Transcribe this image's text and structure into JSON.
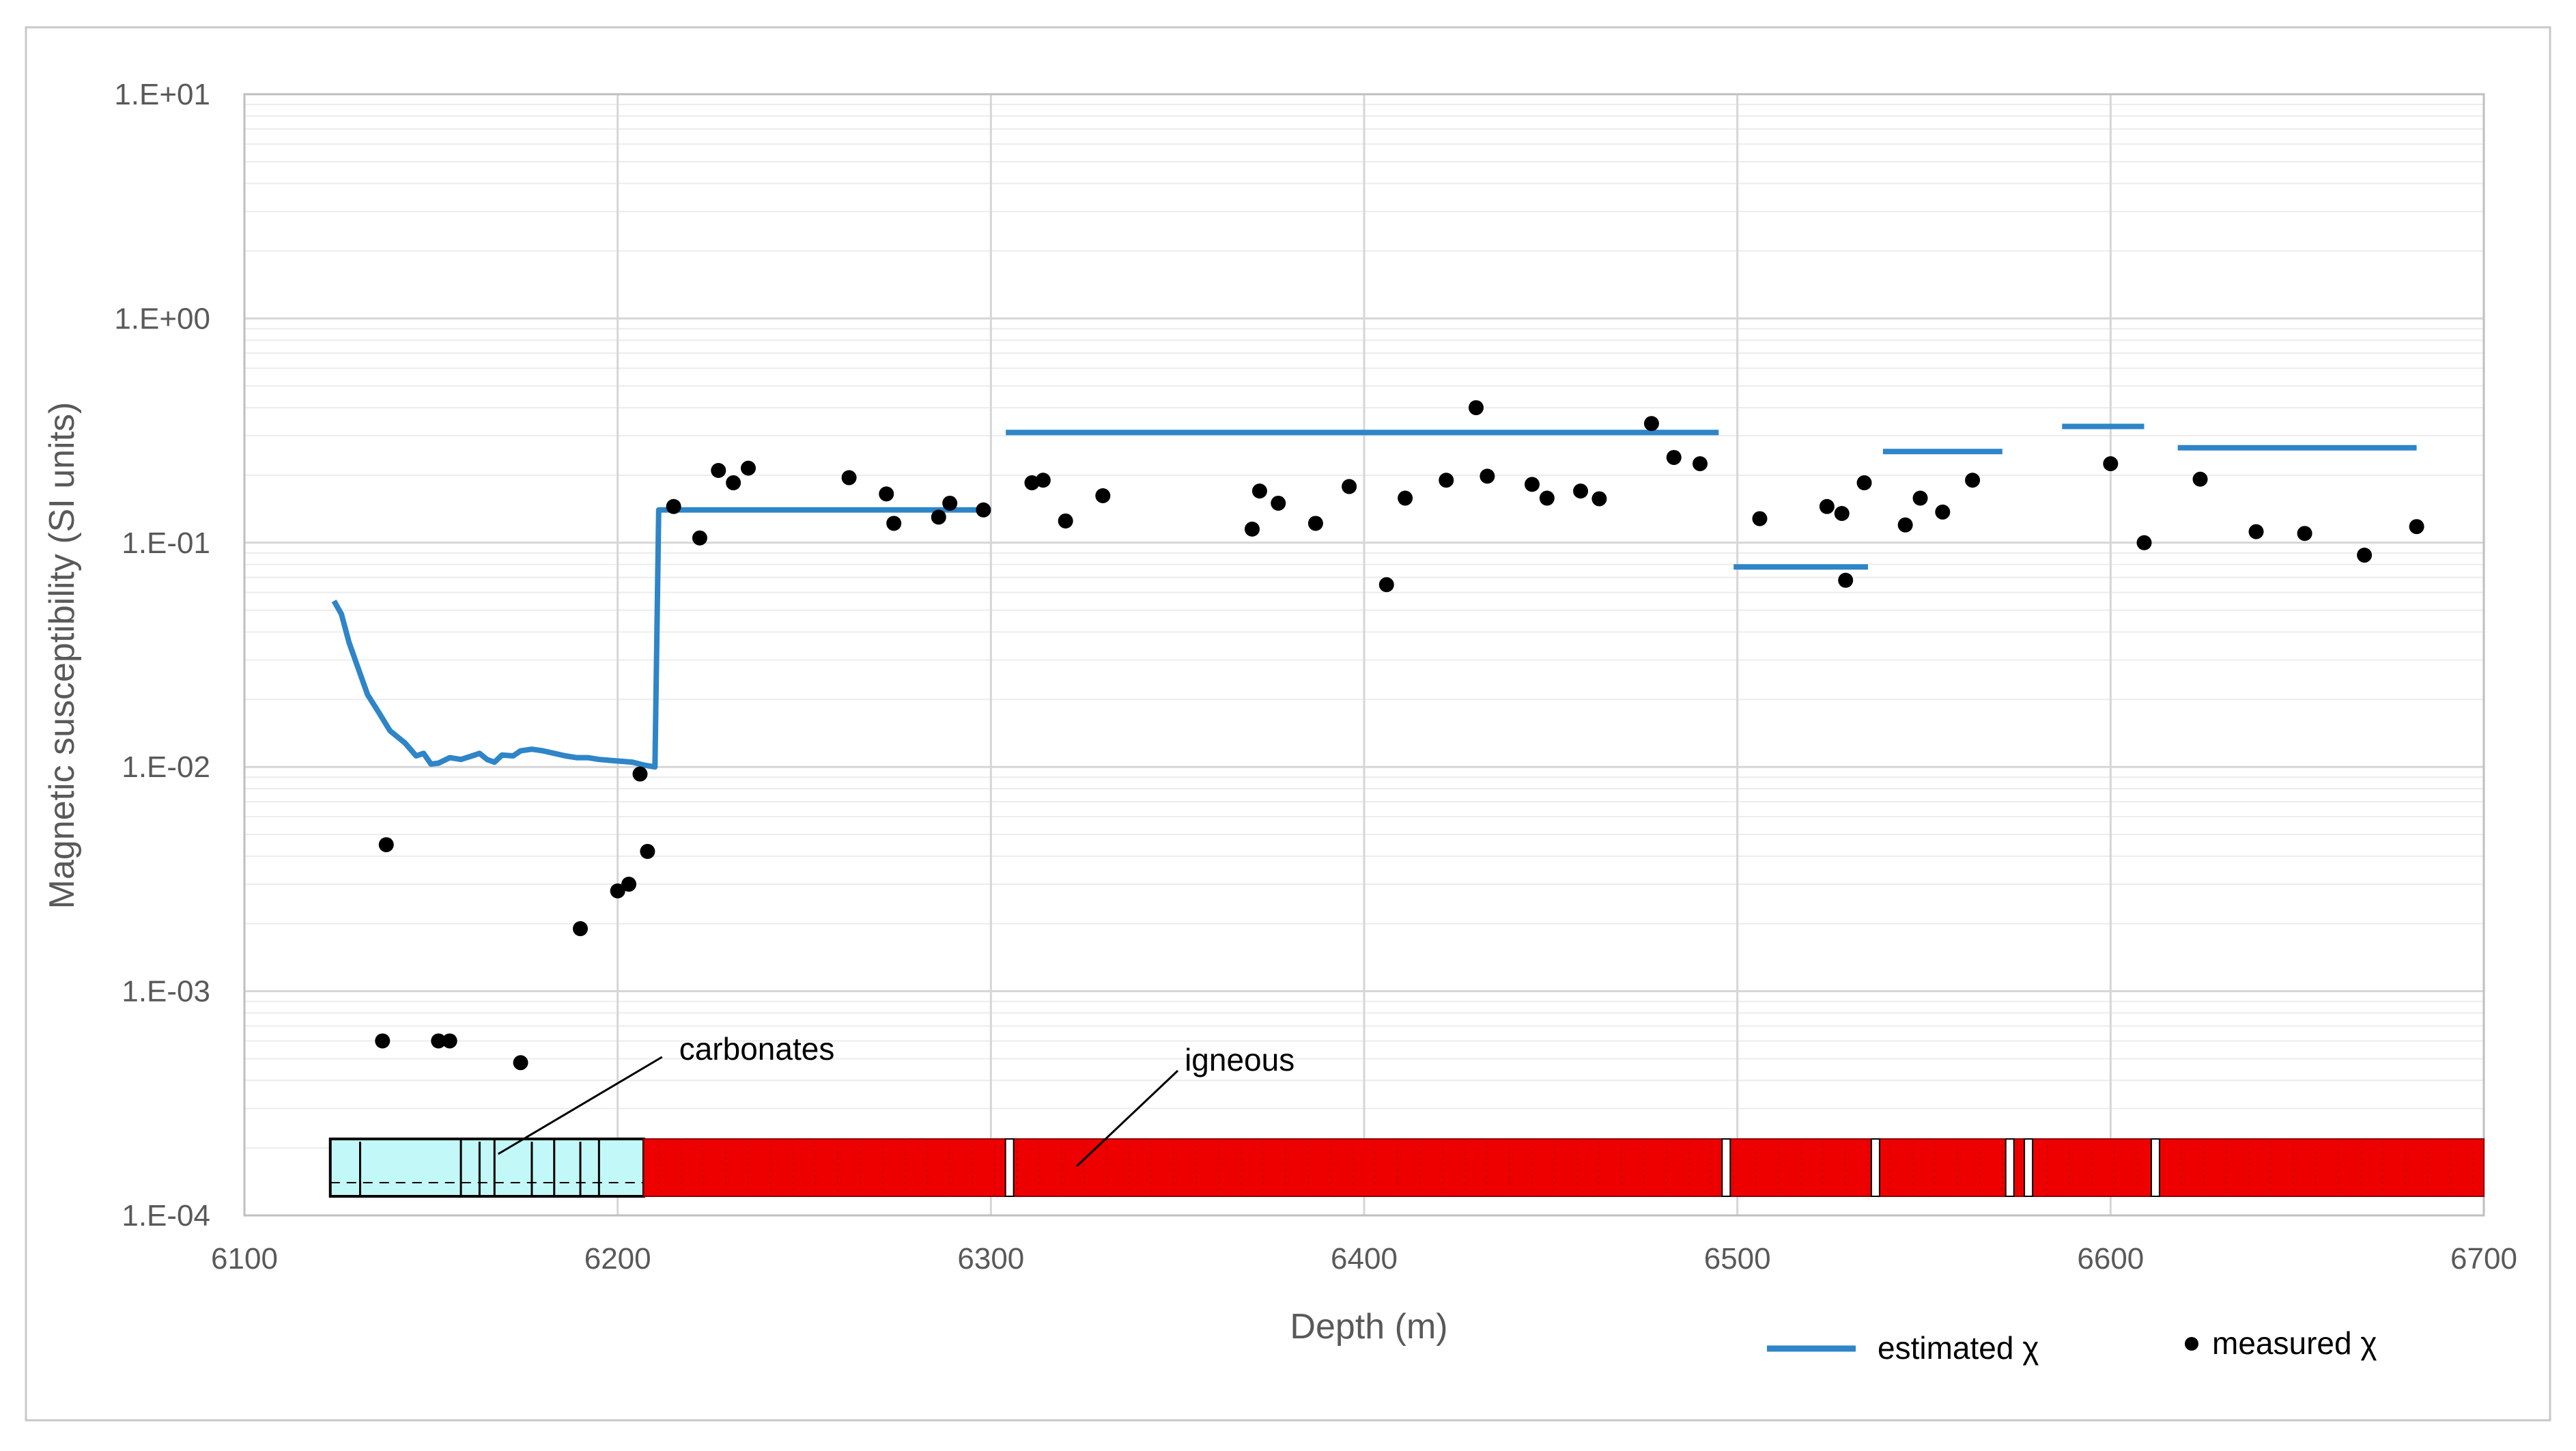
{
  "chart_data": {
    "type": "scatter",
    "xlabel": "Depth (m)",
    "ylabel": "Magnetic susceptibility (SI units)",
    "xlim": [
      6100,
      6700
    ],
    "ylim": [
      0.0001,
      10
    ],
    "y_scale": "log",
    "x_ticks": [
      "6100",
      "6200",
      "6300",
      "6400",
      "6500",
      "6600",
      "6700"
    ],
    "y_ticks": [
      "1.E-04",
      "1.E-03",
      "1.E-02",
      "1.E-01",
      "1.E+00",
      "1.E+01"
    ],
    "grid": true,
    "legend_position": "bottom-right",
    "colors": {
      "estimated": "#2e85c7",
      "measured": "#000000",
      "carbonates": "#c3f8f8",
      "igneous": "#ee0000",
      "grid": "#d6d6d6",
      "frame": "#bfbfbf"
    },
    "series": [
      {
        "name": "estimated χ",
        "kind": "line",
        "segments": [
          [
            [
              6124,
              0.055
            ],
            [
              6126,
              0.048
            ],
            [
              6128,
              0.036
            ],
            [
              6130,
              0.029
            ],
            [
              6133,
              0.021
            ],
            [
              6136,
              0.0175
            ],
            [
              6139,
              0.0145
            ],
            [
              6143,
              0.0128
            ],
            [
              6146,
              0.0112
            ],
            [
              6148,
              0.0115
            ],
            [
              6150,
              0.0103
            ],
            [
              6152,
              0.0104
            ],
            [
              6155,
              0.011
            ],
            [
              6158,
              0.0108
            ],
            [
              6161,
              0.0112
            ],
            [
              6163,
              0.0115
            ],
            [
              6165,
              0.0108
            ],
            [
              6167,
              0.0105
            ],
            [
              6169,
              0.0113
            ],
            [
              6172,
              0.0112
            ],
            [
              6174,
              0.0118
            ],
            [
              6177,
              0.012
            ],
            [
              6180,
              0.0118
            ],
            [
              6183,
              0.0115
            ],
            [
              6186,
              0.0112
            ],
            [
              6189,
              0.011
            ],
            [
              6192,
              0.011
            ],
            [
              6195,
              0.0108
            ],
            [
              6198,
              0.0107
            ],
            [
              6201,
              0.0106
            ],
            [
              6204,
              0.0105
            ],
            [
              6207,
              0.0102
            ],
            [
              6210,
              0.01
            ],
            [
              6211,
              0.14
            ],
            [
              6300,
              0.14
            ]
          ],
          [
            [
              6304,
              0.31
            ],
            [
              6495,
              0.31
            ]
          ],
          [
            [
              6499,
              0.078
            ],
            [
              6535,
              0.078
            ]
          ],
          [
            [
              6539,
              0.255
            ],
            [
              6571,
              0.255
            ]
          ],
          [
            [
              6587,
              0.33
            ],
            [
              6609,
              0.33
            ]
          ],
          [
            [
              6618,
              0.265
            ],
            [
              6682,
              0.265
            ]
          ]
        ]
      },
      {
        "name": "measured χ",
        "kind": "scatter",
        "points": [
          [
            6137,
            0.0006
          ],
          [
            6138,
            0.0045
          ],
          [
            6152,
            0.0006
          ],
          [
            6155,
            0.0006
          ],
          [
            6174,
            0.00048
          ],
          [
            6190,
            0.0019
          ],
          [
            6200,
            0.0028
          ],
          [
            6203,
            0.003
          ],
          [
            6206,
            0.0093
          ],
          [
            6208,
            0.0042
          ],
          [
            6215,
            0.145
          ],
          [
            6222,
            0.105
          ],
          [
            6227,
            0.21
          ],
          [
            6231,
            0.185
          ],
          [
            6235,
            0.215
          ],
          [
            6262,
            0.195
          ],
          [
            6272,
            0.165
          ],
          [
            6274,
            0.122
          ],
          [
            6286,
            0.13
          ],
          [
            6289,
            0.15
          ],
          [
            6298,
            0.14
          ],
          [
            6311,
            0.185
          ],
          [
            6314,
            0.19
          ],
          [
            6320,
            0.125
          ],
          [
            6330,
            0.162
          ],
          [
            6370,
            0.115
          ],
          [
            6372,
            0.17
          ],
          [
            6377,
            0.15
          ],
          [
            6387,
            0.122
          ],
          [
            6396,
            0.178
          ],
          [
            6406,
            0.065
          ],
          [
            6411,
            0.158
          ],
          [
            6422,
            0.19
          ],
          [
            6430,
            0.4
          ],
          [
            6433,
            0.198
          ],
          [
            6445,
            0.182
          ],
          [
            6449,
            0.158
          ],
          [
            6458,
            0.17
          ],
          [
            6463,
            0.157
          ],
          [
            6477,
            0.34
          ],
          [
            6483,
            0.24
          ],
          [
            6490,
            0.225
          ],
          [
            6506,
            0.128
          ],
          [
            6524,
            0.145
          ],
          [
            6528,
            0.135
          ],
          [
            6529,
            0.068
          ],
          [
            6534,
            0.185
          ],
          [
            6545,
            0.12
          ],
          [
            6549,
            0.158
          ],
          [
            6555,
            0.137
          ],
          [
            6563,
            0.19
          ],
          [
            6600,
            0.225
          ],
          [
            6609,
            0.1
          ],
          [
            6624,
            0.192
          ],
          [
            6639,
            0.112
          ],
          [
            6652,
            0.11
          ],
          [
            6668,
            0.088
          ],
          [
            6682,
            0.118
          ]
        ]
      }
    ],
    "lithology": {
      "labels": [
        {
          "text": "carbonates",
          "depth": 6168
        },
        {
          "text": "igneous",
          "depth": 6323
        }
      ],
      "carbonates_interval": [
        6123,
        6207
      ],
      "igneous_interval": [
        6207,
        6700
      ],
      "carbonate_ticks": [
        6131,
        6158,
        6163,
        6167,
        6177,
        6183,
        6190,
        6195
      ],
      "igneous_gaps": [
        6305,
        6497,
        6537,
        6573,
        6578,
        6612
      ]
    }
  }
}
